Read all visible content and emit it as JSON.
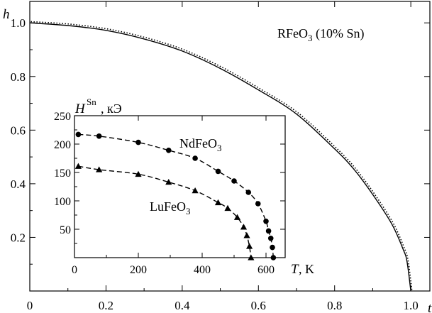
{
  "chart_data": [
    {
      "type": "line",
      "annotation": "RFeO₃ (10% Sn)",
      "ylabel": "h",
      "xlabel": "t",
      "xlim": [
        0,
        1.05
      ],
      "ylim": [
        0,
        1.08
      ],
      "xticks": [
        "0",
        "0.2",
        "0.4",
        "0.6",
        "0.8",
        "1.0"
      ],
      "yticks": [
        "0.2",
        "0.4",
        "0.6",
        "0.8",
        "1.0"
      ],
      "series": [
        {
          "style": "solid",
          "x": [
            0,
            0.1,
            0.2,
            0.3,
            0.4,
            0.5,
            0.6,
            0.7,
            0.8,
            0.85,
            0.9,
            0.95,
            0.98,
            0.99,
            1.0
          ],
          "y": [
            1.0,
            0.99,
            0.972,
            0.94,
            0.895,
            0.83,
            0.75,
            0.66,
            0.53,
            0.455,
            0.36,
            0.25,
            0.155,
            0.11,
            0.0
          ]
        },
        {
          "style": "dotted",
          "x": [
            0,
            0.1,
            0.2,
            0.3,
            0.4,
            0.5,
            0.6,
            0.7,
            0.8,
            0.85,
            0.9,
            0.95,
            0.98,
            0.99,
            1.0
          ],
          "y": [
            1.002,
            0.993,
            0.975,
            0.943,
            0.898,
            0.833,
            0.753,
            0.663,
            0.533,
            0.458,
            0.363,
            0.253,
            0.158,
            0.112,
            0.0
          ]
        }
      ]
    },
    {
      "type": "scatter",
      "inset": true,
      "ylabel_symbol": "H",
      "ylabel_sup": "Sn",
      "ylabel_unit": ", кЭ",
      "xlabel_symbol": "T",
      "xlabel_unit": ", K",
      "xlim": [
        0,
        660
      ],
      "ylim": [
        0,
        250
      ],
      "xticks": [
        "0",
        "200",
        "400",
        "600"
      ],
      "yticks": [
        "50",
        "100",
        "150",
        "200",
        "250"
      ],
      "series": [
        {
          "name_main": "NdFeO",
          "name_sub": "3",
          "marker": "circle",
          "x": [
            12,
            77,
            200,
            295,
            378,
            450,
            500,
            545,
            575,
            600,
            608,
            615,
            620,
            623
          ],
          "y": [
            217,
            214,
            203,
            189,
            175,
            152,
            135,
            115,
            95,
            64,
            47,
            34,
            18,
            0
          ]
        },
        {
          "name_main": "LuFeO",
          "name_sub": "3",
          "marker": "triangle",
          "x": [
            12,
            77,
            200,
            295,
            378,
            450,
            480,
            510,
            530,
            540,
            548,
            553
          ],
          "y": [
            161,
            155,
            147,
            133,
            118,
            97,
            87,
            71,
            54,
            39,
            20,
            0
          ]
        }
      ]
    }
  ]
}
